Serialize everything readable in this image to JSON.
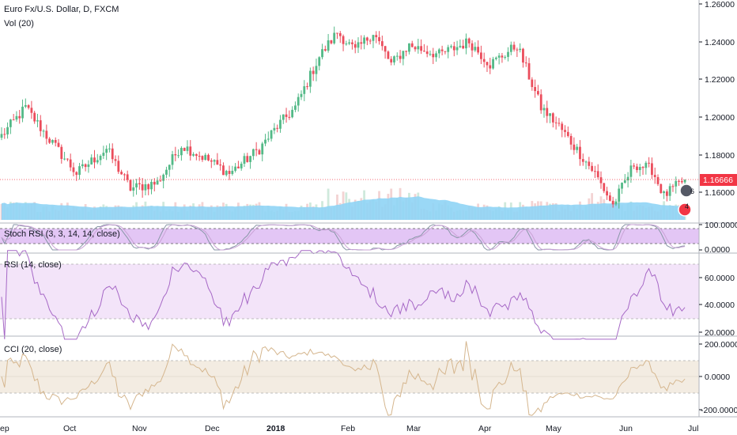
{
  "main_title": "Euro Fx/U.S. Dollar, D, FXCM",
  "vol_title": "Vol (20)",
  "last_price": "1.16666",
  "event_badges": [
    "6",
    "4"
  ],
  "colors": {
    "up": "#53b987",
    "down": "#eb4d5c",
    "accent": "#f23645",
    "vol_ma": "#8fd4f5",
    "stoch_band": "#e3c6f5",
    "rsi_band": "#f3e4f9",
    "cci_band": "#f3ece2",
    "stoch_line": "#8a97a8",
    "rsi_line": "#a668c6",
    "cci_line": "#d5b68e"
  },
  "chart_data": [
    {
      "type": "candlestick",
      "title": "Euro Fx/U.S. Dollar, D, FXCM",
      "ylim": [
        1.148,
        1.262
      ],
      "y_ticks": [
        "1.26000",
        "1.24000",
        "1.22000",
        "1.20000",
        "1.18000",
        "1.16000"
      ],
      "keypoints": [
        [
          0,
          1.19
        ],
        [
          8,
          1.205
        ],
        [
          15,
          1.19
        ],
        [
          25,
          1.17
        ],
        [
          35,
          1.183
        ],
        [
          43,
          1.162
        ],
        [
          52,
          1.165
        ],
        [
          60,
          1.185
        ],
        [
          68,
          1.178
        ],
        [
          76,
          1.17
        ],
        [
          86,
          1.183
        ],
        [
          92,
          1.195
        ],
        [
          98,
          1.205
        ],
        [
          106,
          1.232
        ],
        [
          112,
          1.245
        ],
        [
          118,
          1.235
        ],
        [
          124,
          1.245
        ],
        [
          130,
          1.228
        ],
        [
          136,
          1.238
        ],
        [
          146,
          1.233
        ],
        [
          156,
          1.24
        ],
        [
          163,
          1.228
        ],
        [
          172,
          1.238
        ],
        [
          180,
          1.205
        ],
        [
          186,
          1.195
        ],
        [
          198,
          1.17
        ],
        [
          204,
          1.153
        ],
        [
          211,
          1.175
        ],
        [
          217,
          1.172
        ],
        [
          221,
          1.158
        ],
        [
          225,
          1.163
        ],
        [
          228,
          1.1667
        ]
      ],
      "last_price": 1.16666
    },
    {
      "type": "bar",
      "title": "Vol (20)",
      "series": [
        {
          "name": "Vol (20)"
        }
      ]
    },
    {
      "type": "line",
      "title": "Stoch RSI (3, 3, 14, 14, close)",
      "ylim": [
        -5,
        108
      ],
      "y_ticks": [
        "100.0000",
        "0.0000"
      ],
      "bands": [
        20,
        80
      ]
    },
    {
      "type": "line",
      "title": "RSI (14, close)",
      "ylim": [
        12,
        82
      ],
      "y_ticks": [
        "60.0000",
        "40.0000",
        "20.0000"
      ],
      "bands": [
        30,
        70
      ]
    },
    {
      "type": "line",
      "title": "CCI (20, close)",
      "ylim": [
        -250,
        250
      ],
      "y_ticks": [
        "200.0000",
        "0.0000",
        "-200.0000"
      ],
      "bands": [
        -100,
        100
      ]
    }
  ],
  "x_axis": {
    "labels": [
      "ep",
      "Oct",
      "Nov",
      "Dec",
      "2018",
      "Feb",
      "Mar",
      "Apr",
      "May",
      "Jun",
      "Jul"
    ],
    "bold": "2018"
  }
}
